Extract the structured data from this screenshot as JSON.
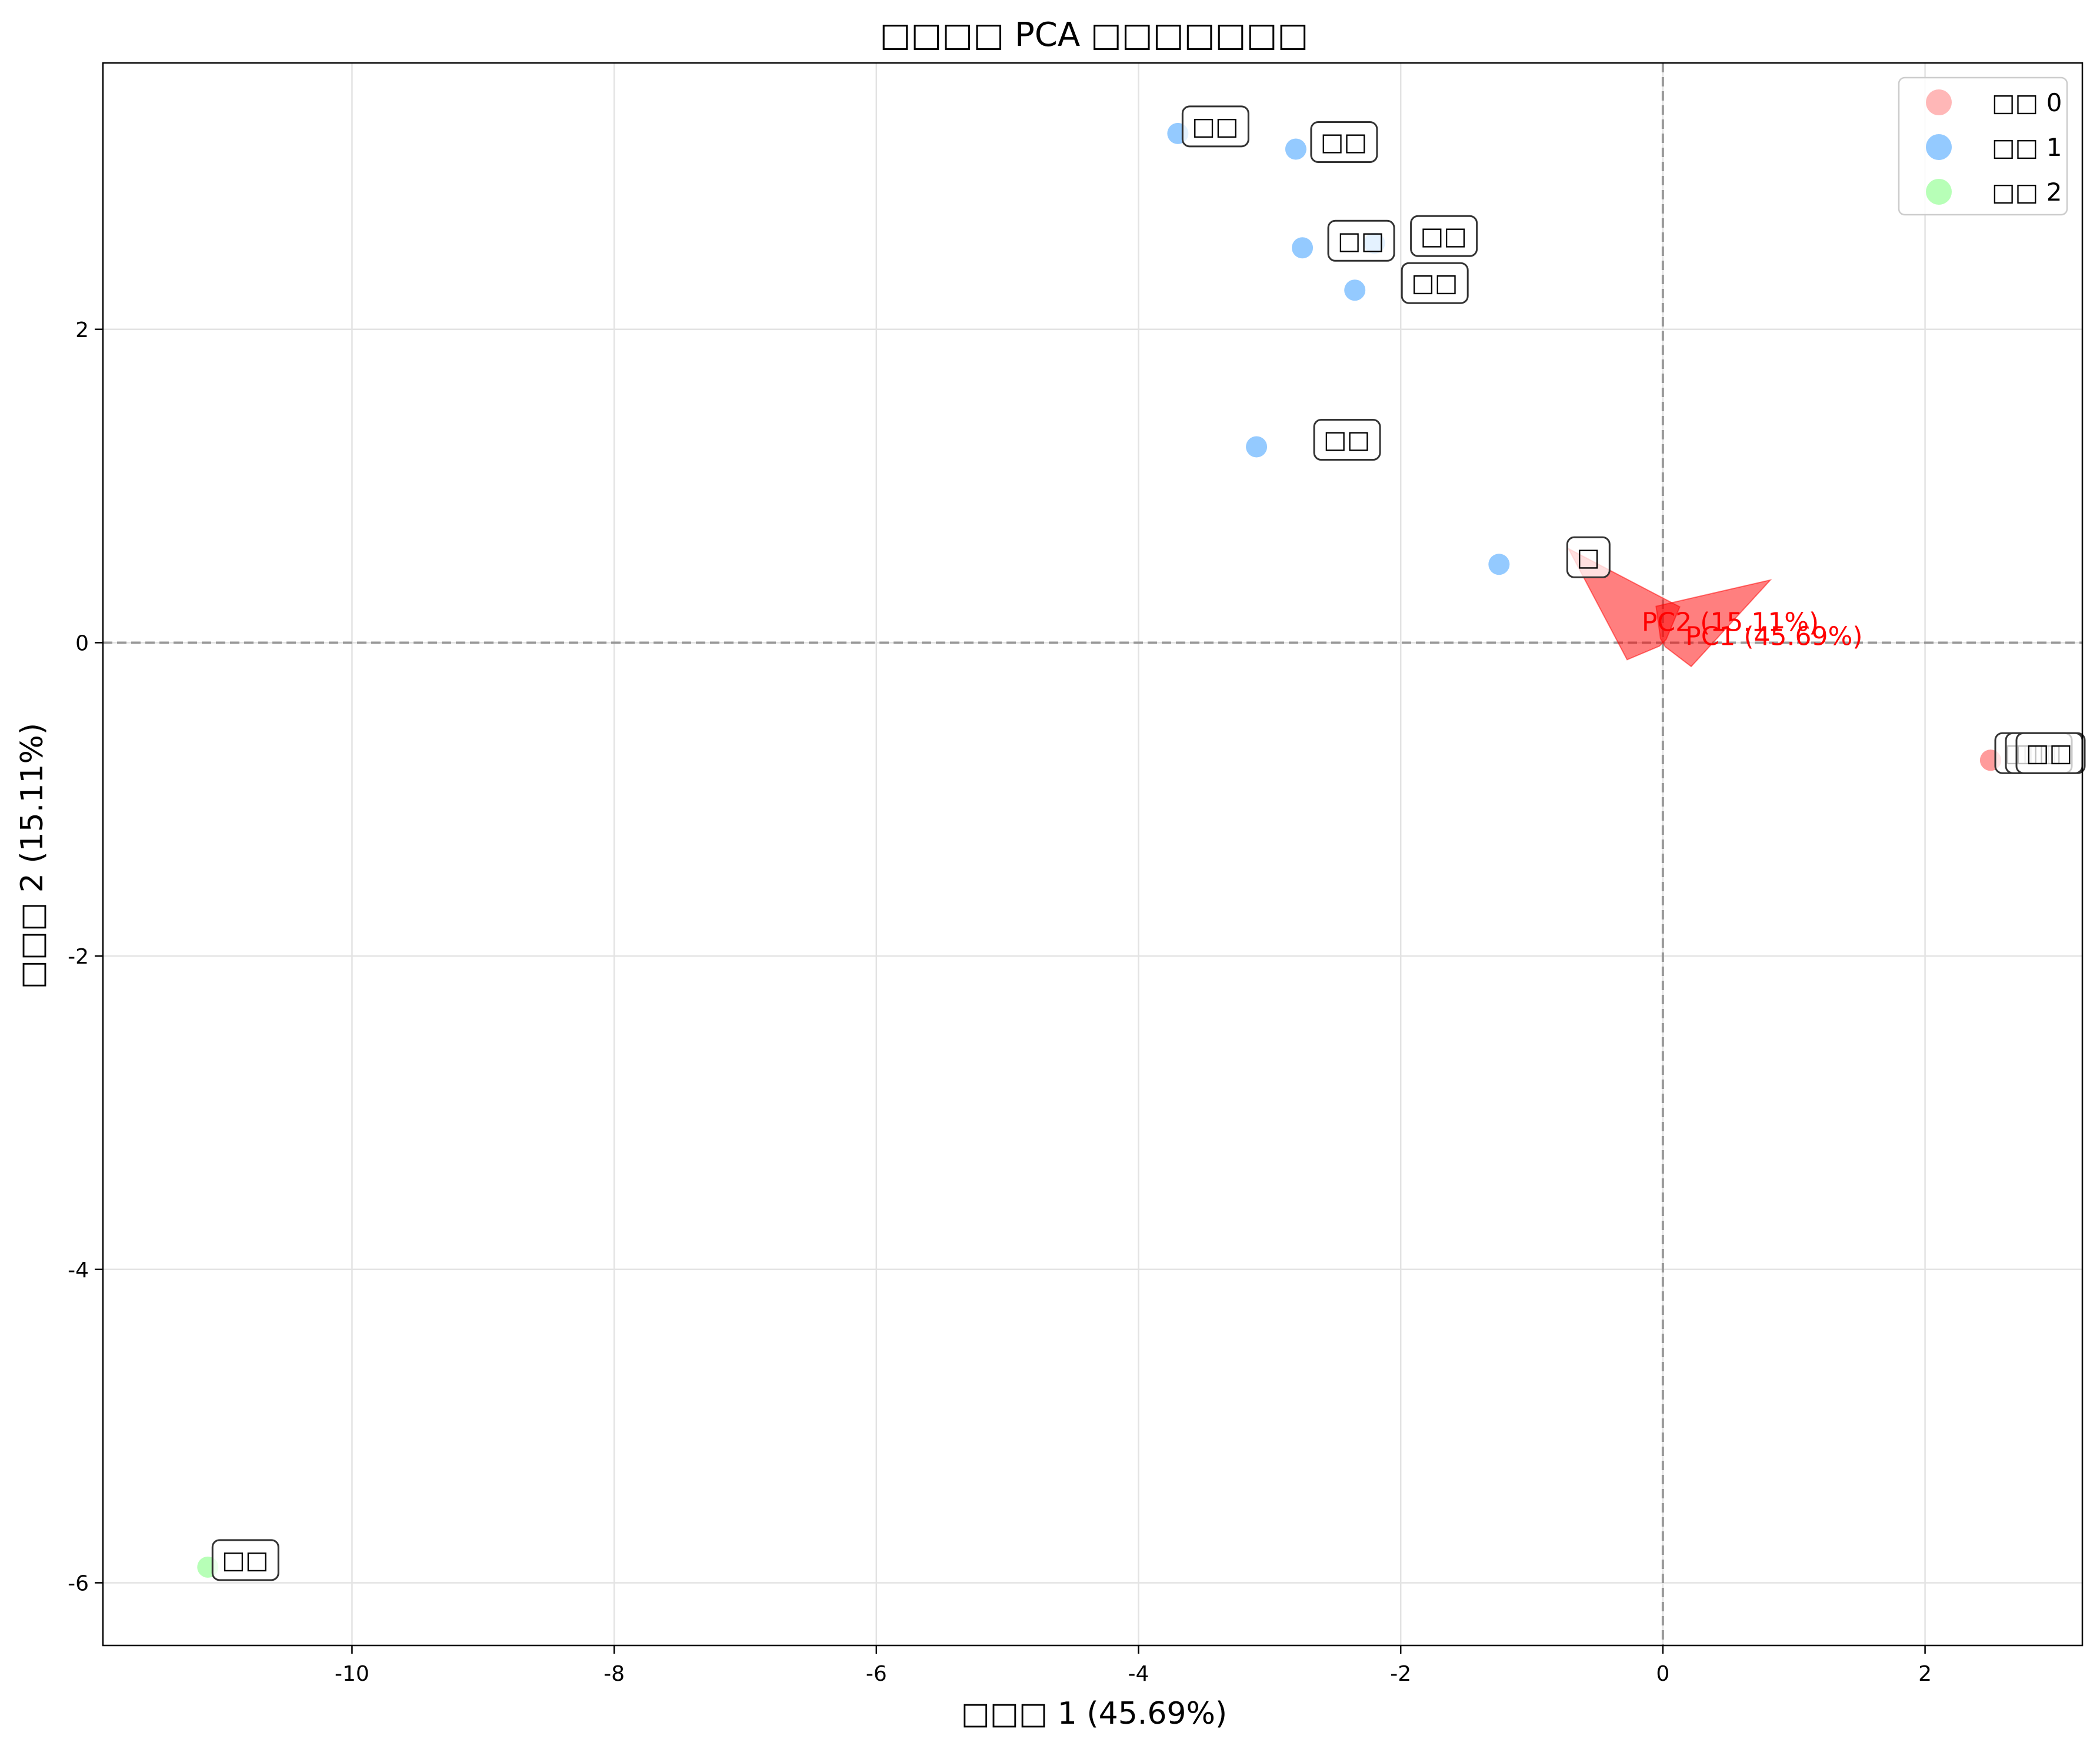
{
  "chart_data": {
    "type": "scatter",
    "title": "□□□□ PCA □□□□□□□",
    "xlabel": "□□□ 1 (45.69%)",
    "ylabel": "□□□ 2 (15.11%)",
    "xlim": [
      -11.9,
      3.2
    ],
    "ylim": [
      -6.4,
      3.7
    ],
    "xticks": [
      -10,
      -8,
      -6,
      -4,
      -2,
      0,
      2
    ],
    "yticks": [
      -6,
      -4,
      -2,
      0,
      2
    ],
    "grid": true,
    "legend_position": "top-right",
    "reference_lines": {
      "x": 0,
      "y": 0
    },
    "series": [
      {
        "name": "□□ 0",
        "color": "#ff9999",
        "points": [
          {
            "x": 2.5,
            "y": -0.75,
            "label": "□□□"
          },
          {
            "x": 2.5,
            "y": -0.75,
            "label": "□□"
          },
          {
            "x": 2.5,
            "y": -0.75,
            "label": "□□"
          }
        ]
      },
      {
        "name": "□□ 1",
        "color": "#66b3ff",
        "points": [
          {
            "x": -3.7,
            "y": 3.25,
            "label": "□□"
          },
          {
            "x": -2.8,
            "y": 3.15,
            "label": "□□"
          },
          {
            "x": -2.75,
            "y": 2.52,
            "label": "□□"
          },
          {
            "x": -2.2,
            "y": 2.55,
            "label": "□□"
          },
          {
            "x": -2.35,
            "y": 2.25,
            "label": "□□"
          },
          {
            "x": -3.1,
            "y": 1.25,
            "label": "□□"
          },
          {
            "x": -1.25,
            "y": 0.5,
            "label": "□"
          }
        ]
      },
      {
        "name": "□□ 2",
        "color": "#99ff99",
        "points": [
          {
            "x": -11.1,
            "y": -5.9,
            "label": "□□"
          }
        ]
      }
    ],
    "loading_vectors": [
      {
        "label": "PC1 (45.69%)",
        "dx": 0.82,
        "dy": 0.4
      },
      {
        "label": "PC2 (15.11%)",
        "dx": -0.72,
        "dy": 0.6
      }
    ],
    "vector_color": "#ff0000"
  }
}
